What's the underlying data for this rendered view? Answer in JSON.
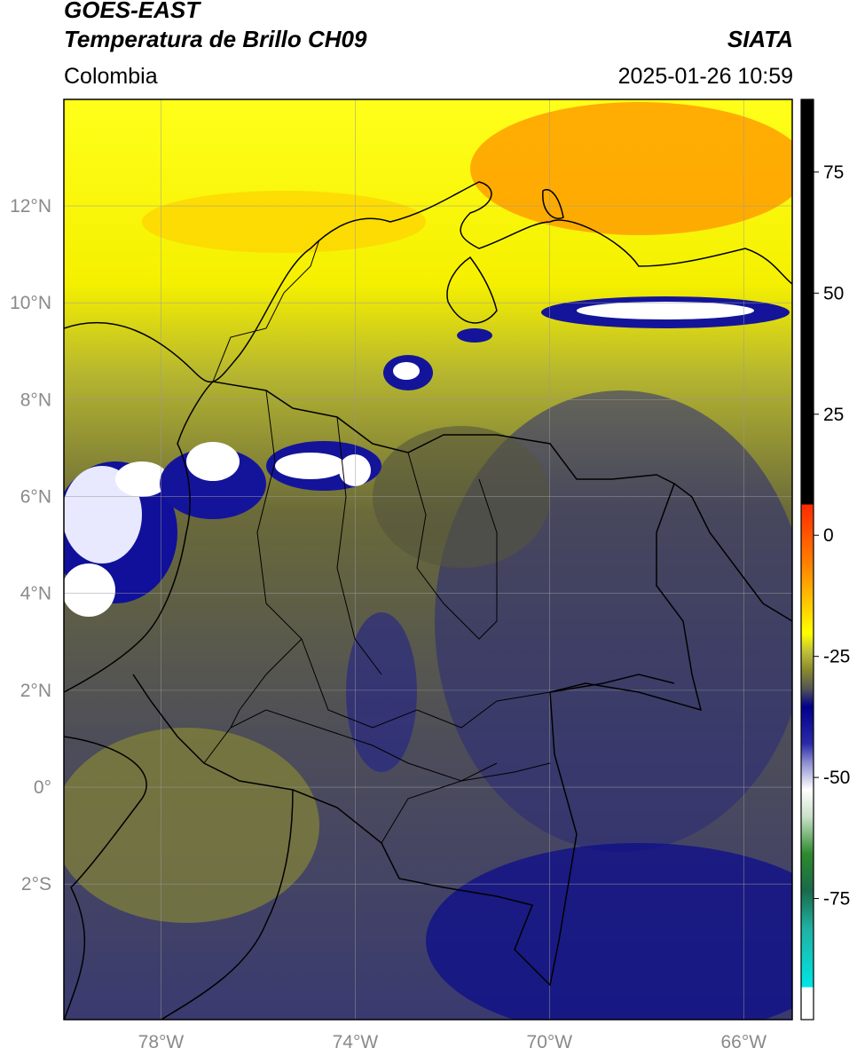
{
  "header": {
    "satellite": "GOES-EAST",
    "product": "Temperatura de Brillo CH09",
    "brand": "SIATA",
    "region": "Colombia",
    "datetime": "2025-01-26 10:59"
  },
  "map": {
    "lat_labels": [
      "12°N",
      "10°N",
      "8°N",
      "6°N",
      "4°N",
      "2°N",
      "0°",
      "2°S"
    ],
    "lon_labels": [
      "78°W",
      "74°W",
      "70°W",
      "66°W"
    ],
    "extent": {
      "lon_min": -80.0,
      "lon_max": -65.0,
      "lat_min": -4.8,
      "lat_max": 14.2
    },
    "grid": true
  },
  "colorbar": {
    "labels": [
      "75",
      "50",
      "25",
      "0",
      "-25",
      "-50",
      "-75"
    ],
    "min": -100,
    "max": 90,
    "colors": {
      "warm": "#000000",
      "zero_hot": "#ff2a00",
      "orange": "#ff9900",
      "yellow": "#ffff00",
      "olive": "#8a8a2e",
      "navy": "#00008c",
      "white": "#ffffff",
      "green": "#2c8a2c",
      "cyan": "#00e6e6"
    }
  }
}
